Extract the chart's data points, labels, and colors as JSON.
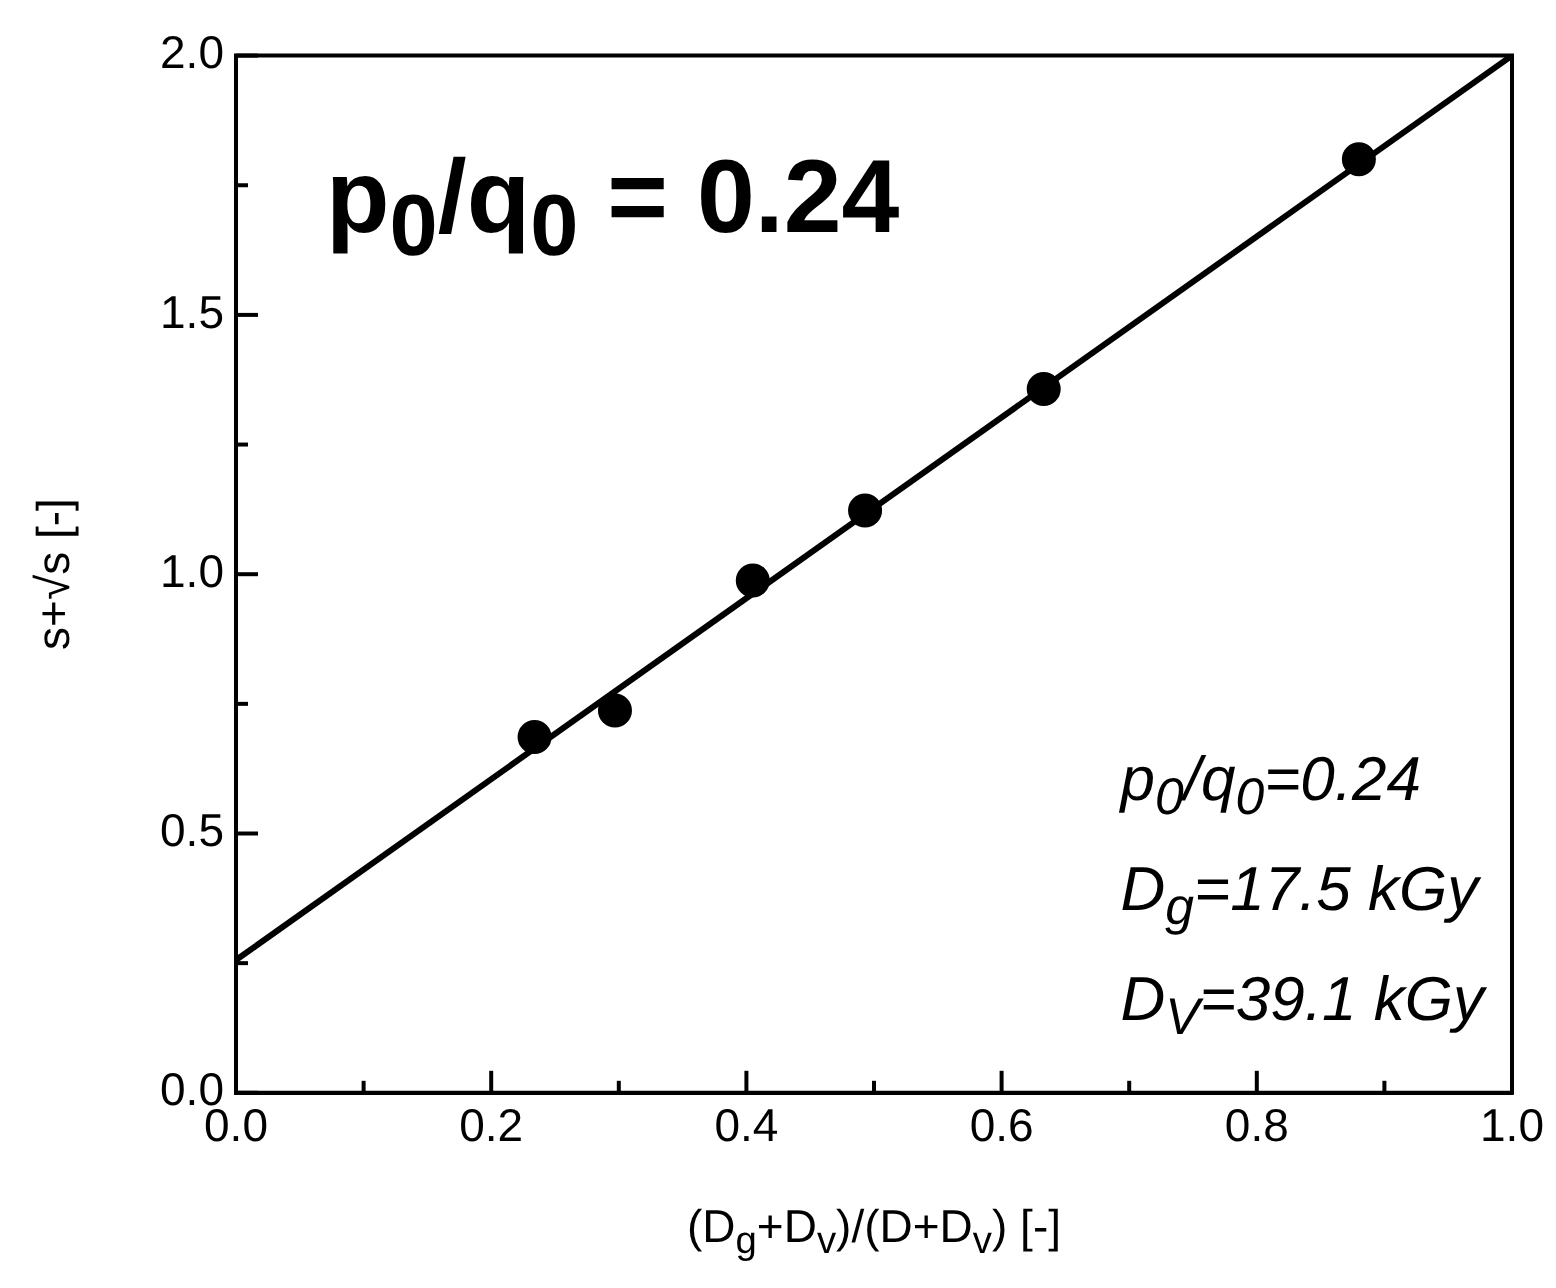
{
  "chart_data": {
    "type": "scatter",
    "xlabel": "(D$_{g}$+D$_{v}$)/(D+D$_{v}$) [-]",
    "ylabel": "s+√s [-]",
    "series": [
      {
        "type": "scatter",
        "color": "#000000",
        "marker": "circle",
        "x": [
          0.234,
          0.297,
          0.405,
          0.493,
          0.633,
          0.88
        ],
        "values": [
          0.686,
          0.737,
          0.988,
          1.123,
          1.357,
          1.8
        ]
      },
      {
        "type": "line",
        "color": "#000000",
        "marker": "none",
        "x": [
          0,
          1
        ],
        "values": [
          0.256,
          2.0
        ]
      }
    ],
    "xlim": [
      0,
      1
    ],
    "ylim": [
      0,
      2
    ],
    "xticks": [
      {
        "value": 0,
        "label": "0.0"
      },
      {
        "value": 0.1,
        "label": null
      },
      {
        "value": 0.2,
        "label": "0.2"
      },
      {
        "value": 0.3,
        "label": null
      },
      {
        "value": 0.4,
        "label": "0.4"
      },
      {
        "value": 0.5,
        "label": null
      },
      {
        "value": 0.6,
        "label": "0.6"
      },
      {
        "value": 0.7,
        "label": null
      },
      {
        "value": 0.8,
        "label": "0.8"
      },
      {
        "value": 0.9,
        "label": null
      },
      {
        "value": 1,
        "label": "1.0"
      }
    ],
    "yticks": [
      {
        "value": 0,
        "label": "0.0"
      },
      {
        "value": 0.25,
        "label": null
      },
      {
        "value": 0.5,
        "label": "0.5"
      },
      {
        "value": 0.75,
        "label": null
      },
      {
        "value": 1,
        "label": "1.0"
      },
      {
        "value": 1.25,
        "label": null
      },
      {
        "value": 1.5,
        "label": "1.5"
      },
      {
        "value": 1.75,
        "label": null
      },
      {
        "value": 2,
        "label": "2.0"
      }
    ],
    "annotations": [
      "p$_{0}$/q$_{0}$ = 0.24",
      "p$_{0}$/q$_{0}$=0.24",
      "D$_{g}$=17.5 kGy",
      "D$_{V}$=39.1 kGy"
    ],
    "grid": false,
    "legend": false
  }
}
